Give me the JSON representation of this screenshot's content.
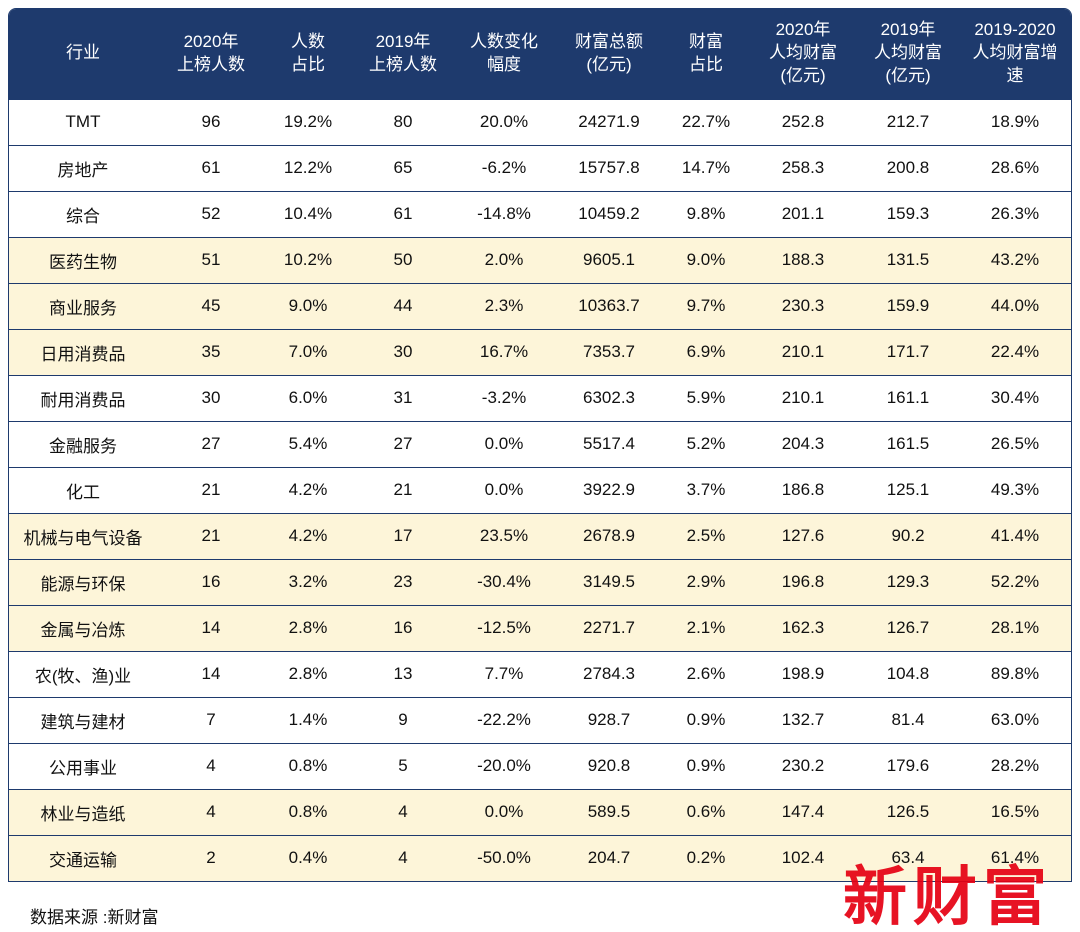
{
  "colors": {
    "header_bg": "#1e3a6d",
    "row_bg": "#ffffff",
    "row_alt_bg": "#fdf5d9",
    "border": "#1e3a6d",
    "watermark_red": "#e60012"
  },
  "footer": {
    "source": "数据来源 :新财富"
  },
  "watermark": {
    "text": "新财富"
  },
  "chart_data": {
    "type": "table",
    "columns": [
      {
        "label": "行业",
        "lines": [
          "行业"
        ]
      },
      {
        "label": "2020年上榜人数",
        "lines": [
          "2020年",
          "上榜人数"
        ]
      },
      {
        "label": "人数占比",
        "lines": [
          "人数",
          "占比"
        ]
      },
      {
        "label": "2019年上榜人数",
        "lines": [
          "2019年",
          "上榜人数"
        ]
      },
      {
        "label": "人数变化幅度",
        "lines": [
          "人数变化",
          "幅度"
        ]
      },
      {
        "label": "财富总额(亿元)",
        "lines": [
          "财富总额",
          "(亿元)"
        ]
      },
      {
        "label": "财富占比",
        "lines": [
          "财富",
          "占比"
        ]
      },
      {
        "label": "2020年人均财富(亿元)",
        "lines": [
          "2020年",
          "人均财富",
          "(亿元)"
        ]
      },
      {
        "label": "2019年人均财富(亿元)",
        "lines": [
          "2019年",
          "人均财富",
          "(亿元)"
        ]
      },
      {
        "label": "2019-2020人均财富增速",
        "lines": [
          "2019-2020",
          "人均财富增",
          "速"
        ]
      }
    ],
    "rows": [
      [
        "TMT",
        "96",
        "19.2%",
        "80",
        "20.0%",
        "24271.9",
        "22.7%",
        "252.8",
        "212.7",
        "18.9%"
      ],
      [
        "房地产",
        "61",
        "12.2%",
        "65",
        "-6.2%",
        "15757.8",
        "14.7%",
        "258.3",
        "200.8",
        "28.6%"
      ],
      [
        "综合",
        "52",
        "10.4%",
        "61",
        "-14.8%",
        "10459.2",
        "9.8%",
        "201.1",
        "159.3",
        "26.3%"
      ],
      [
        "医药生物",
        "51",
        "10.2%",
        "50",
        "2.0%",
        "9605.1",
        "9.0%",
        "188.3",
        "131.5",
        "43.2%"
      ],
      [
        "商业服务",
        "45",
        "9.0%",
        "44",
        "2.3%",
        "10363.7",
        "9.7%",
        "230.3",
        "159.9",
        "44.0%"
      ],
      [
        "日用消费品",
        "35",
        "7.0%",
        "30",
        "16.7%",
        "7353.7",
        "6.9%",
        "210.1",
        "171.7",
        "22.4%"
      ],
      [
        "耐用消费品",
        "30",
        "6.0%",
        "31",
        "-3.2%",
        "6302.3",
        "5.9%",
        "210.1",
        "161.1",
        "30.4%"
      ],
      [
        "金融服务",
        "27",
        "5.4%",
        "27",
        "0.0%",
        "5517.4",
        "5.2%",
        "204.3",
        "161.5",
        "26.5%"
      ],
      [
        "化工",
        "21",
        "4.2%",
        "21",
        "0.0%",
        "3922.9",
        "3.7%",
        "186.8",
        "125.1",
        "49.3%"
      ],
      [
        "机械与电气设备",
        "21",
        "4.2%",
        "17",
        "23.5%",
        "2678.9",
        "2.5%",
        "127.6",
        "90.2",
        "41.4%"
      ],
      [
        "能源与环保",
        "16",
        "3.2%",
        "23",
        "-30.4%",
        "3149.5",
        "2.9%",
        "196.8",
        "129.3",
        "52.2%"
      ],
      [
        "金属与冶炼",
        "14",
        "2.8%",
        "16",
        "-12.5%",
        "2271.7",
        "2.1%",
        "162.3",
        "126.7",
        "28.1%"
      ],
      [
        "农(牧、渔)业",
        "14",
        "2.8%",
        "13",
        "7.7%",
        "2784.3",
        "2.6%",
        "198.9",
        "104.8",
        "89.8%"
      ],
      [
        "建筑与建材",
        "7",
        "1.4%",
        "9",
        "-22.2%",
        "928.7",
        "0.9%",
        "132.7",
        "81.4",
        "63.0%"
      ],
      [
        "公用事业",
        "4",
        "0.8%",
        "5",
        "-20.0%",
        "920.8",
        "0.9%",
        "230.2",
        "179.6",
        "28.2%"
      ],
      [
        "林业与造纸",
        "4",
        "0.8%",
        "4",
        "0.0%",
        "589.5",
        "0.6%",
        "147.4",
        "126.5",
        "16.5%"
      ],
      [
        "交通运输",
        "2",
        "0.4%",
        "4",
        "-50.0%",
        "204.7",
        "0.2%",
        "102.4",
        "63.4",
        "61.4%"
      ]
    ]
  }
}
